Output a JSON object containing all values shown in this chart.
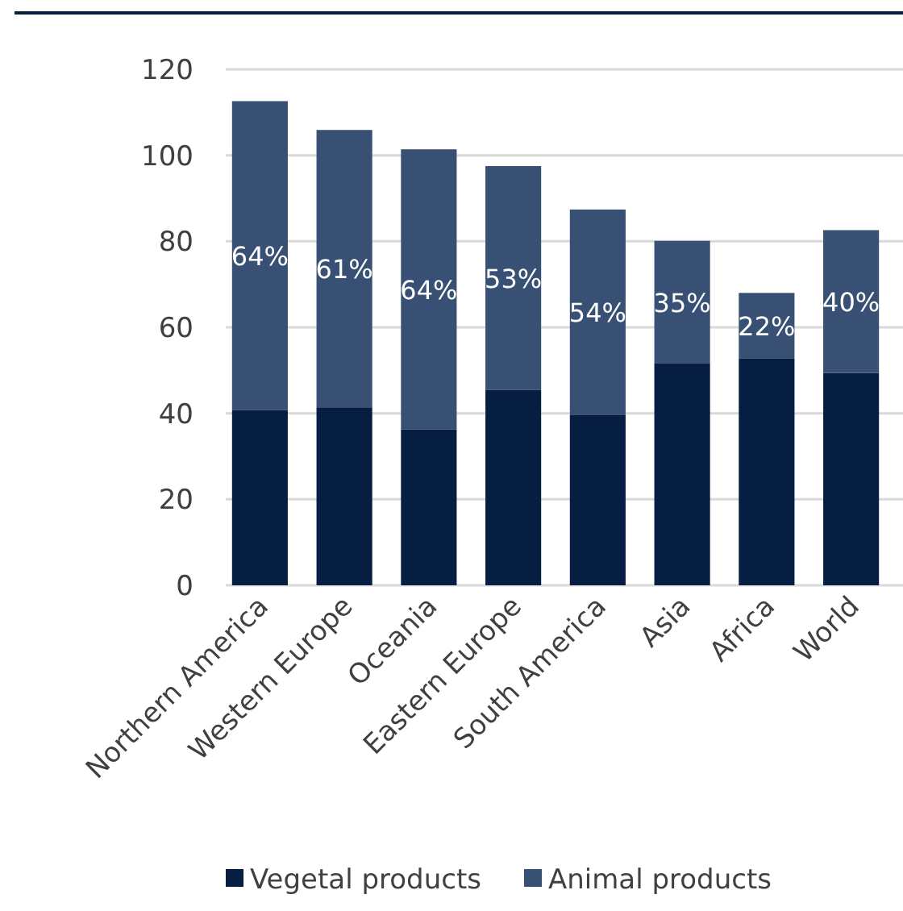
{
  "chart_data": {
    "type": "bar",
    "stacked": true,
    "categories": [
      "Northern America",
      "Western Europe",
      "Oceania",
      "Eastern Europe",
      "South America",
      "Asia",
      "Africa",
      "World"
    ],
    "series": [
      {
        "name": "Vegetal products",
        "color": "#051e42",
        "values": [
          40.8,
          41.4,
          36.3,
          45.4,
          39.7,
          51.7,
          52.7,
          49.4
        ]
      },
      {
        "name": "Animal products",
        "color": "#375073",
        "values": [
          71.8,
          64.5,
          65.1,
          52.1,
          47.7,
          28.4,
          15.3,
          33.2
        ]
      }
    ],
    "annotations": [
      "64%",
      "61%",
      "64%",
      "53%",
      "54%",
      "35%",
      "22%",
      "40%"
    ],
    "ylim": [
      0,
      120
    ],
    "yticks": [
      0,
      20,
      40,
      60,
      80,
      100,
      120
    ],
    "grid": "y",
    "legend": "bottom"
  }
}
